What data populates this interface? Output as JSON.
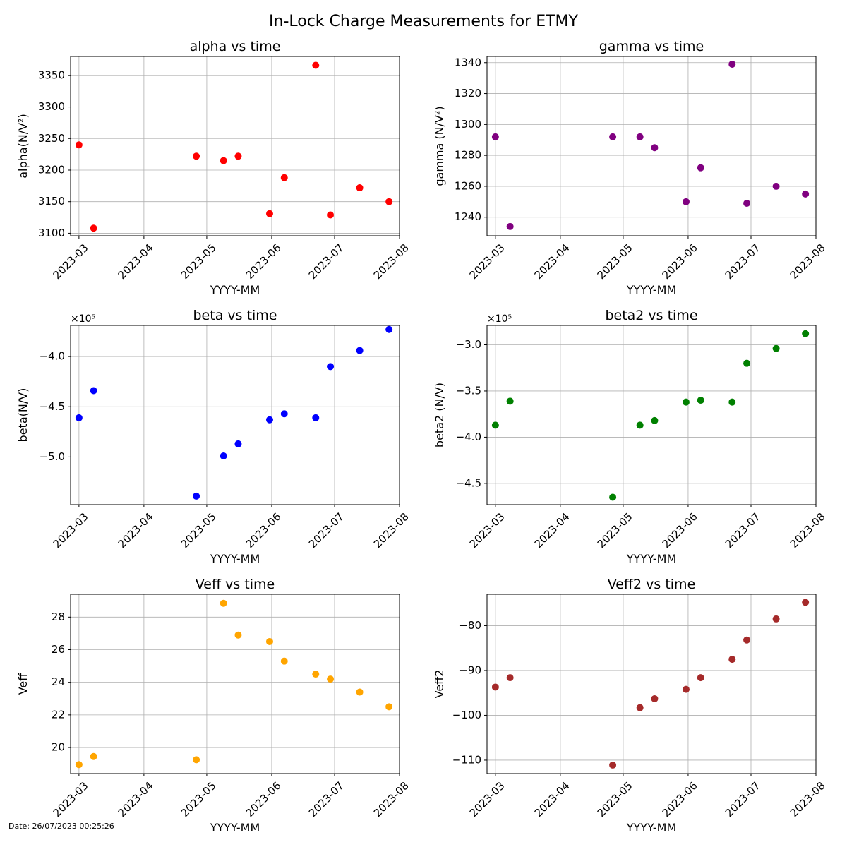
{
  "figure": {
    "title": "In-Lock Charge Measurements for ETMY",
    "footer": "Date: 26/07/2023 00:25:26"
  },
  "chart_data": [
    {
      "type": "scatter",
      "title": "alpha vs time",
      "xlabel": "YYYY-MM",
      "ylabel": "alpha(N/V²)",
      "x_ticks": [
        "2023-03",
        "2023-04",
        "2023-05",
        "2023-06",
        "2023-07",
        "2023-08"
      ],
      "xlim": [
        "2023-02-25",
        "2023-08-01"
      ],
      "ylim": [
        3096,
        3380
      ],
      "y_ticks": [
        3100,
        3150,
        3200,
        3250,
        3300,
        3350
      ],
      "y_tick_labels": [
        "3100",
        "3150",
        "3200",
        "3250",
        "3300",
        "3350"
      ],
      "offset_label": "",
      "grid": true,
      "color": "#ff0000",
      "x": [
        "2023-03-01",
        "2023-03-08",
        "2023-04-26",
        "2023-05-09",
        "2023-05-16",
        "2023-05-31",
        "2023-06-07",
        "2023-06-22",
        "2023-06-29",
        "2023-07-13",
        "2023-07-27"
      ],
      "y": [
        3240,
        3108,
        3222,
        3215,
        3222,
        3131,
        3188,
        3366,
        3129,
        3172,
        3150
      ]
    },
    {
      "type": "scatter",
      "title": "gamma vs time",
      "xlabel": "YYYY-MM",
      "ylabel": "gamma (N/V²)",
      "x_ticks": [
        "2023-03",
        "2023-04",
        "2023-05",
        "2023-06",
        "2023-07",
        "2023-08"
      ],
      "xlim": [
        "2023-02-25",
        "2023-08-01"
      ],
      "ylim": [
        1228,
        1344
      ],
      "y_ticks": [
        1240,
        1260,
        1280,
        1300,
        1320,
        1340
      ],
      "y_tick_labels": [
        "1240",
        "1260",
        "1280",
        "1300",
        "1320",
        "1340"
      ],
      "offset_label": "",
      "grid": true,
      "color": "#800080",
      "x": [
        "2023-03-01",
        "2023-03-08",
        "2023-04-26",
        "2023-05-09",
        "2023-05-16",
        "2023-05-31",
        "2023-06-07",
        "2023-06-22",
        "2023-06-29",
        "2023-07-13",
        "2023-07-27"
      ],
      "y": [
        1292,
        1234,
        1292,
        1292,
        1285,
        1250,
        1272,
        1339,
        1249,
        1260,
        1255
      ]
    },
    {
      "type": "scatter",
      "title": "beta vs time",
      "xlabel": "YYYY-MM",
      "ylabel": "beta(N/V)",
      "x_ticks": [
        "2023-03",
        "2023-04",
        "2023-05",
        "2023-06",
        "2023-07",
        "2023-08"
      ],
      "xlim": [
        "2023-02-25",
        "2023-08-01"
      ],
      "ylim": [
        -547500,
        -369000
      ],
      "y_ticks": [
        -500000,
        -450000,
        -400000
      ],
      "y_tick_labels": [
        "−5.0",
        "−4.5",
        "−4.0"
      ],
      "offset_label": "×10⁵",
      "grid": true,
      "color": "#0000ff",
      "x": [
        "2023-03-01",
        "2023-03-08",
        "2023-04-26",
        "2023-05-09",
        "2023-05-16",
        "2023-05-31",
        "2023-06-07",
        "2023-06-22",
        "2023-06-29",
        "2023-07-13",
        "2023-07-27"
      ],
      "y": [
        -461000,
        -434000,
        -539000,
        -499000,
        -487000,
        -463000,
        -457000,
        -461000,
        -410000,
        -394000,
        -373000
      ]
    },
    {
      "type": "scatter",
      "title": "beta2 vs time",
      "xlabel": "YYYY-MM",
      "ylabel": "beta2 (N/V)",
      "x_ticks": [
        "2023-03",
        "2023-04",
        "2023-05",
        "2023-06",
        "2023-07",
        "2023-08"
      ],
      "xlim": [
        "2023-02-25",
        "2023-08-01"
      ],
      "ylim": [
        -473000,
        -279000
      ],
      "y_ticks": [
        -450000,
        -400000,
        -350000,
        -300000
      ],
      "y_tick_labels": [
        "−4.5",
        "−4.0",
        "−3.5",
        "−3.0"
      ],
      "offset_label": "×10⁵",
      "grid": true,
      "color": "#008000",
      "x": [
        "2023-03-01",
        "2023-03-08",
        "2023-04-26",
        "2023-05-09",
        "2023-05-16",
        "2023-05-31",
        "2023-06-07",
        "2023-06-22",
        "2023-06-29",
        "2023-07-13",
        "2023-07-27"
      ],
      "y": [
        -387000,
        -361000,
        -465000,
        -387000,
        -382000,
        -362000,
        -360000,
        -362000,
        -320000,
        -304000,
        -288000
      ]
    },
    {
      "type": "scatter",
      "title": "Veff vs time",
      "xlabel": "YYYY-MM",
      "ylabel": "Veff",
      "x_ticks": [
        "2023-03",
        "2023-04",
        "2023-05",
        "2023-06",
        "2023-07",
        "2023-08"
      ],
      "xlim": [
        "2023-02-25",
        "2023-08-01"
      ],
      "ylim": [
        18.4,
        29.4
      ],
      "y_ticks": [
        20,
        22,
        24,
        26,
        28
      ],
      "y_tick_labels": [
        "20",
        "22",
        "24",
        "26",
        "28"
      ],
      "offset_label": "",
      "grid": true,
      "color": "#ffa500",
      "x": [
        "2023-03-01",
        "2023-03-08",
        "2023-04-26",
        "2023-05-09",
        "2023-05-16",
        "2023-05-31",
        "2023-06-07",
        "2023-06-22",
        "2023-06-29",
        "2023-07-13",
        "2023-07-27"
      ],
      "y": [
        18.95,
        19.45,
        19.25,
        28.85,
        26.9,
        26.5,
        25.3,
        24.5,
        24.2,
        23.4,
        22.5
      ]
    },
    {
      "type": "scatter",
      "title": "Veff2 vs time",
      "xlabel": "YYYY-MM",
      "ylabel": "Veff2",
      "x_ticks": [
        "2023-03",
        "2023-04",
        "2023-05",
        "2023-06",
        "2023-07",
        "2023-08"
      ],
      "xlim": [
        "2023-02-25",
        "2023-08-01"
      ],
      "ylim": [
        -113,
        -73
      ],
      "y_ticks": [
        -110,
        -100,
        -90,
        -80
      ],
      "y_tick_labels": [
        "−110",
        "−100",
        "−90",
        "−80"
      ],
      "offset_label": "",
      "grid": true,
      "color": "#a52a2a",
      "x": [
        "2023-03-01",
        "2023-03-08",
        "2023-04-26",
        "2023-05-09",
        "2023-05-16",
        "2023-05-31",
        "2023-06-07",
        "2023-06-22",
        "2023-06-29",
        "2023-07-13",
        "2023-07-27"
      ],
      "y": [
        -93.7,
        -91.6,
        -111.1,
        -98.3,
        -96.3,
        -94.2,
        -91.6,
        -87.5,
        -83.2,
        -78.5,
        -74.8
      ]
    }
  ]
}
